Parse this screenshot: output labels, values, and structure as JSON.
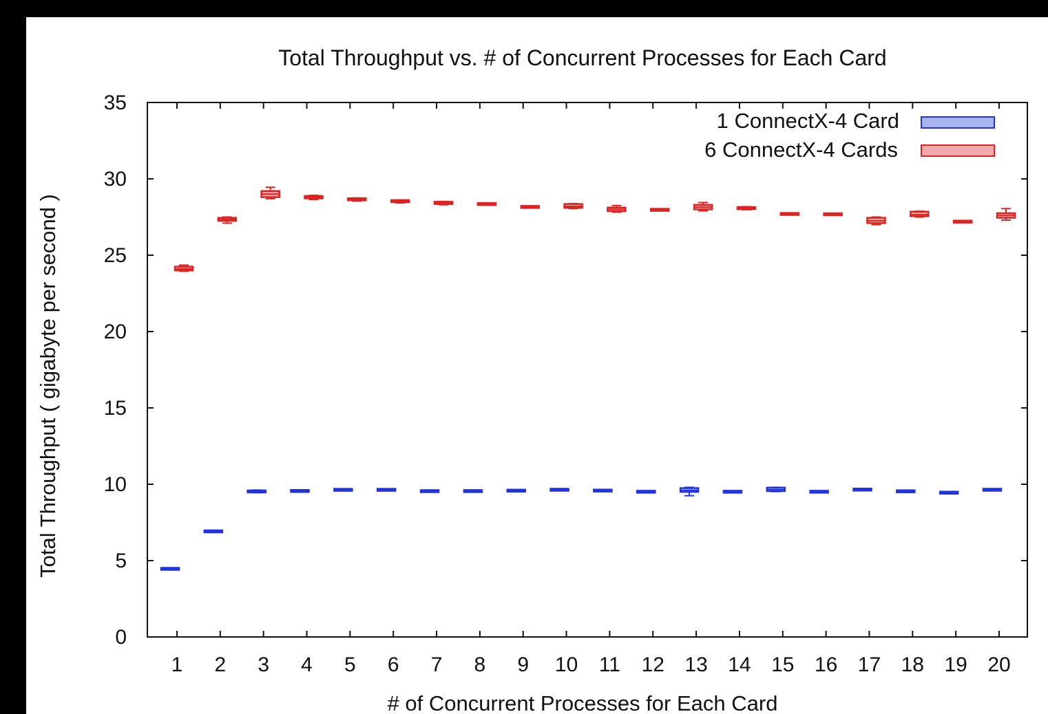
{
  "chart_data": {
    "type": "box",
    "title": "Total Throughput vs. # of Concurrent Processes for Each Card",
    "xlabel": "# of Concurrent Processes for Each Card",
    "ylabel": "Total Throughput ( gigabyte per second )",
    "categories": [
      "1",
      "2",
      "3",
      "4",
      "5",
      "6",
      "7",
      "8",
      "9",
      "10",
      "11",
      "12",
      "13",
      "14",
      "15",
      "16",
      "17",
      "18",
      "19",
      "20"
    ],
    "ylim": [
      0,
      35
    ],
    "yticks": [
      0,
      5,
      10,
      15,
      20,
      25,
      30,
      35
    ],
    "grid": false,
    "legend_position": "top-right",
    "series": [
      {
        "name": "1 ConnectX-4 Card",
        "edge_color": "#2233dd",
        "fill_color": "#aab4f0",
        "boxes": [
          {
            "x": 1,
            "min": 4.45,
            "q1": 4.45,
            "median": 4.45,
            "q3": 4.47,
            "max": 4.47
          },
          {
            "x": 2,
            "min": 6.85,
            "q1": 6.88,
            "median": 6.9,
            "q3": 6.95,
            "max": 6.98
          },
          {
            "x": 3,
            "min": 9.45,
            "q1": 9.48,
            "median": 9.52,
            "q3": 9.58,
            "max": 9.62
          },
          {
            "x": 4,
            "min": 9.5,
            "q1": 9.52,
            "median": 9.55,
            "q3": 9.6,
            "max": 9.62
          },
          {
            "x": 5,
            "min": 9.58,
            "q1": 9.6,
            "median": 9.63,
            "q3": 9.67,
            "max": 9.68
          },
          {
            "x": 6,
            "min": 9.58,
            "q1": 9.6,
            "median": 9.63,
            "q3": 9.67,
            "max": 9.68
          },
          {
            "x": 7,
            "min": 9.48,
            "q1": 9.5,
            "median": 9.53,
            "q3": 9.6,
            "max": 9.62
          },
          {
            "x": 8,
            "min": 9.52,
            "q1": 9.53,
            "median": 9.55,
            "q3": 9.58,
            "max": 9.6
          },
          {
            "x": 9,
            "min": 9.55,
            "q1": 9.56,
            "median": 9.58,
            "q3": 9.6,
            "max": 9.62
          },
          {
            "x": 10,
            "min": 9.62,
            "q1": 9.63,
            "median": 9.64,
            "q3": 9.65,
            "max": 9.66
          },
          {
            "x": 11,
            "min": 9.55,
            "q1": 9.56,
            "median": 9.58,
            "q3": 9.61,
            "max": 9.62
          },
          {
            "x": 12,
            "min": 9.5,
            "q1": 9.5,
            "median": 9.51,
            "q3": 9.52,
            "max": 9.52
          },
          {
            "x": 13,
            "min": 9.25,
            "q1": 9.5,
            "median": 9.6,
            "q3": 9.75,
            "max": 9.8
          },
          {
            "x": 14,
            "min": 9.5,
            "q1": 9.5,
            "median": 9.51,
            "q3": 9.52,
            "max": 9.52
          },
          {
            "x": 15,
            "min": 9.52,
            "q1": 9.55,
            "median": 9.65,
            "q3": 9.78,
            "max": 9.8
          },
          {
            "x": 16,
            "min": 9.5,
            "q1": 9.5,
            "median": 9.51,
            "q3": 9.52,
            "max": 9.52
          },
          {
            "x": 17,
            "min": 9.63,
            "q1": 9.64,
            "median": 9.65,
            "q3": 9.66,
            "max": 9.67
          },
          {
            "x": 18,
            "min": 9.52,
            "q1": 9.53,
            "median": 9.54,
            "q3": 9.55,
            "max": 9.56
          },
          {
            "x": 19,
            "min": 9.43,
            "q1": 9.44,
            "median": 9.45,
            "q3": 9.46,
            "max": 9.47
          },
          {
            "x": 20,
            "min": 9.62,
            "q1": 9.63,
            "median": 9.64,
            "q3": 9.65,
            "max": 9.66
          }
        ]
      },
      {
        "name": "6 ConnectX-4 Cards",
        "edge_color": "#dd2222",
        "fill_color": "#f2aaaa",
        "boxes": [
          {
            "x": 1,
            "min": 23.95,
            "q1": 24.0,
            "median": 24.1,
            "q3": 24.25,
            "max": 24.35
          },
          {
            "x": 2,
            "min": 27.1,
            "q1": 27.25,
            "median": 27.35,
            "q3": 27.45,
            "max": 27.5
          },
          {
            "x": 3,
            "min": 28.7,
            "q1": 28.8,
            "median": 29.0,
            "q3": 29.2,
            "max": 29.45
          },
          {
            "x": 4,
            "min": 28.65,
            "q1": 28.72,
            "median": 28.8,
            "q3": 28.88,
            "max": 28.92
          },
          {
            "x": 5,
            "min": 28.55,
            "q1": 28.6,
            "median": 28.65,
            "q3": 28.72,
            "max": 28.75
          },
          {
            "x": 6,
            "min": 28.42,
            "q1": 28.48,
            "median": 28.53,
            "q3": 28.6,
            "max": 28.62
          },
          {
            "x": 7,
            "min": 28.3,
            "q1": 28.35,
            "median": 28.42,
            "q3": 28.5,
            "max": 28.52
          },
          {
            "x": 8,
            "min": 28.3,
            "q1": 28.32,
            "median": 28.35,
            "q3": 28.38,
            "max": 28.4
          },
          {
            "x": 9,
            "min": 28.14,
            "q1": 28.15,
            "median": 28.16,
            "q3": 28.17,
            "max": 28.18
          },
          {
            "x": 10,
            "min": 28.05,
            "q1": 28.1,
            "median": 28.2,
            "q3": 28.35,
            "max": 28.38
          },
          {
            "x": 11,
            "min": 27.82,
            "q1": 27.88,
            "median": 28.0,
            "q3": 28.12,
            "max": 28.25
          },
          {
            "x": 12,
            "min": 27.95,
            "q1": 27.96,
            "median": 27.97,
            "q3": 27.98,
            "max": 27.99
          },
          {
            "x": 13,
            "min": 27.9,
            "q1": 28.0,
            "median": 28.15,
            "q3": 28.3,
            "max": 28.45
          },
          {
            "x": 14,
            "min": 27.98,
            "q1": 28.02,
            "median": 28.08,
            "q3": 28.15,
            "max": 28.18
          },
          {
            "x": 15,
            "min": 27.68,
            "q1": 27.69,
            "median": 27.7,
            "q3": 27.71,
            "max": 27.72
          },
          {
            "x": 16,
            "min": 27.66,
            "q1": 27.67,
            "median": 27.68,
            "q3": 27.69,
            "max": 27.7
          },
          {
            "x": 17,
            "min": 27.0,
            "q1": 27.1,
            "median": 27.25,
            "q3": 27.45,
            "max": 27.5
          },
          {
            "x": 18,
            "min": 27.5,
            "q1": 27.55,
            "median": 27.65,
            "q3": 27.85,
            "max": 27.88
          },
          {
            "x": 19,
            "min": 27.18,
            "q1": 27.19,
            "median": 27.2,
            "q3": 27.21,
            "max": 27.22
          },
          {
            "x": 20,
            "min": 27.3,
            "q1": 27.45,
            "median": 27.6,
            "q3": 27.75,
            "max": 28.05
          }
        ]
      }
    ]
  }
}
